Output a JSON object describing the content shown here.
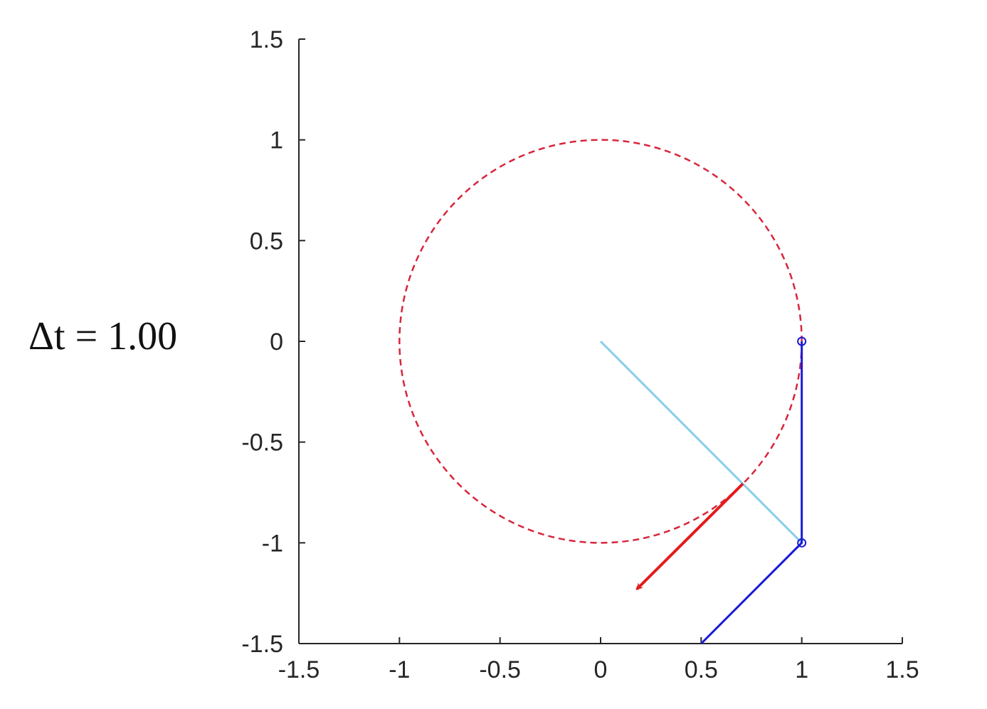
{
  "chart_data": {
    "type": "line",
    "annotation": "Δt = 1.00",
    "xlim": [
      -1.5,
      1.5
    ],
    "ylim": [
      -1.5,
      1.5
    ],
    "xticks": [
      -1.5,
      -1,
      -0.5,
      0,
      0.5,
      1,
      1.5
    ],
    "yticks": [
      -1.5,
      -1,
      -0.5,
      0,
      0.5,
      1,
      1.5
    ],
    "circle": {
      "x": 0,
      "y": 0,
      "r": 1,
      "color": "#d7263d",
      "dashed": true
    },
    "series": [
      {
        "color": "#87ceeb",
        "x": [
          0,
          1
        ],
        "y": [
          0,
          -1
        ]
      },
      {
        "color": "#1a1ad6",
        "x": [
          1,
          1,
          0.5
        ],
        "y": [
          0,
          -1,
          -1.5
        ]
      },
      {
        "color": "#1a1ad6",
        "marker": "o",
        "x": [
          1,
          1
        ],
        "y": [
          0,
          -1
        ]
      }
    ],
    "arrow": {
      "color": "#e41a1c",
      "x": [
        0.707,
        0.18
      ],
      "y": [
        -0.707,
        -1.23
      ]
    }
  }
}
